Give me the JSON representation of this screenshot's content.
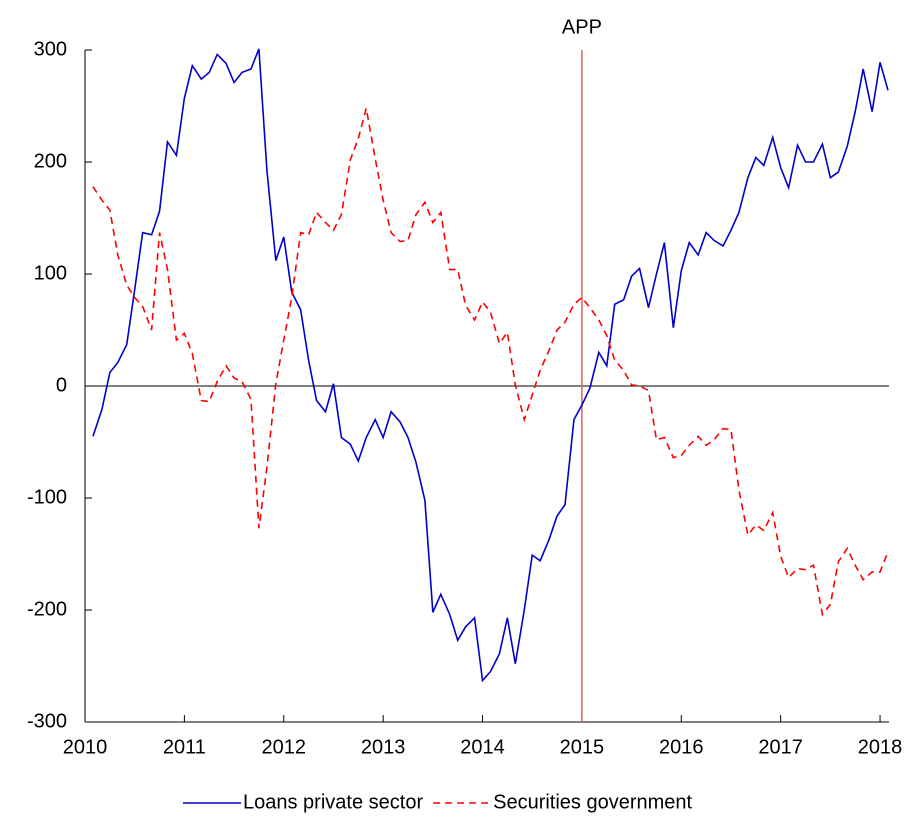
{
  "chart_data": {
    "type": "line",
    "x": [
      2010.08,
      2010.17,
      2010.25,
      2010.33,
      2010.42,
      2010.5,
      2010.58,
      2010.67,
      2010.75,
      2010.83,
      2010.92,
      2011.0,
      2011.08,
      2011.17,
      2011.25,
      2011.33,
      2011.42,
      2011.5,
      2011.58,
      2011.67,
      2011.75,
      2011.83,
      2011.92,
      2012.0,
      2012.08,
      2012.17,
      2012.25,
      2012.33,
      2012.42,
      2012.5,
      2012.58,
      2012.67,
      2012.75,
      2012.83,
      2012.92,
      2013.0,
      2013.08,
      2013.17,
      2013.25,
      2013.33,
      2013.42,
      2013.5,
      2013.58,
      2013.67,
      2013.75,
      2013.83,
      2013.92,
      2014.0,
      2014.08,
      2014.17,
      2014.25,
      2014.33,
      2014.42,
      2014.5,
      2014.58,
      2014.67,
      2014.75,
      2014.83,
      2014.92,
      2015.0,
      2015.08,
      2015.17,
      2015.25,
      2015.33,
      2015.42,
      2015.5,
      2015.58,
      2015.67,
      2015.75,
      2015.83,
      2015.92,
      2016.0,
      2016.08,
      2016.17,
      2016.25,
      2016.33,
      2016.42,
      2016.5,
      2016.58,
      2016.67,
      2016.75,
      2016.83,
      2016.92,
      2017.0,
      2017.08,
      2017.17,
      2017.25,
      2017.33,
      2017.42,
      2017.5,
      2017.58,
      2017.67,
      2017.75,
      2017.83,
      2017.92,
      2018.0,
      2018.08
    ],
    "series": [
      {
        "name": "Loans private sector",
        "color": "#0000cc",
        "dash": false,
        "values": [
          -45,
          -21,
          12,
          21,
          37,
          86,
          137,
          135,
          156,
          218,
          206,
          257,
          286,
          274,
          280,
          296,
          288,
          271,
          280,
          283,
          301,
          193,
          112,
          133,
          84,
          68,
          23,
          -13,
          -23,
          2,
          -46,
          -52,
          -67,
          -46,
          -30,
          -46,
          -23,
          -32,
          -46,
          -68,
          -102,
          -202,
          -186,
          -204,
          -227,
          -215,
          -207,
          -263,
          -255,
          -239,
          -207,
          -248,
          -200,
          -151,
          -156,
          -137,
          -116,
          -106,
          -30,
          -17,
          -2,
          30,
          18,
          73,
          77,
          98,
          105,
          70,
          100,
          128,
          52,
          103,
          128,
          117,
          137,
          130,
          125,
          139,
          155,
          186,
          204,
          197,
          222,
          195,
          177,
          215,
          200,
          200,
          216,
          186,
          191,
          214,
          245,
          283,
          245,
          289,
          264
        ]
      },
      {
        "name": "Securities government",
        "color": "#ff0000",
        "dash": true,
        "values": [
          178,
          166,
          157,
          117,
          90,
          79,
          71,
          50,
          137,
          104,
          41,
          47,
          29,
          -13,
          -14,
          4,
          18,
          7,
          4,
          -12,
          -127,
          -73,
          2,
          41,
          79,
          137,
          135,
          155,
          146,
          139,
          153,
          202,
          221,
          248,
          203,
          166,
          137,
          129,
          130,
          153,
          164,
          146,
          155,
          104,
          104,
          72,
          59,
          75,
          66,
          38,
          48,
          1,
          -30,
          -8,
          14,
          32,
          50,
          57,
          73,
          79,
          70,
          59,
          45,
          23,
          14,
          1,
          0,
          -4,
          -48,
          -46,
          -64,
          -62,
          -53,
          -45,
          -53,
          -48,
          -38,
          -39,
          -93,
          -133,
          -124,
          -129,
          -113,
          -152,
          -171,
          -163,
          -164,
          -160,
          -204,
          -195,
          -157,
          -145,
          -160,
          -173,
          -166,
          -166,
          -148
        ]
      }
    ],
    "xlim": [
      2010,
      2018.09
    ],
    "xticks": [
      2010,
      2011,
      2012,
      2013,
      2014,
      2015,
      2016,
      2017,
      2018
    ],
    "ylim": [
      -300,
      300
    ],
    "yticks": [
      -300,
      -200,
      -100,
      0,
      100,
      200,
      300
    ],
    "hline": 0,
    "annotations": [
      {
        "x": 2015,
        "label": "APP",
        "color": "#e06060"
      }
    ],
    "grid": false,
    "legend": "bottom"
  }
}
